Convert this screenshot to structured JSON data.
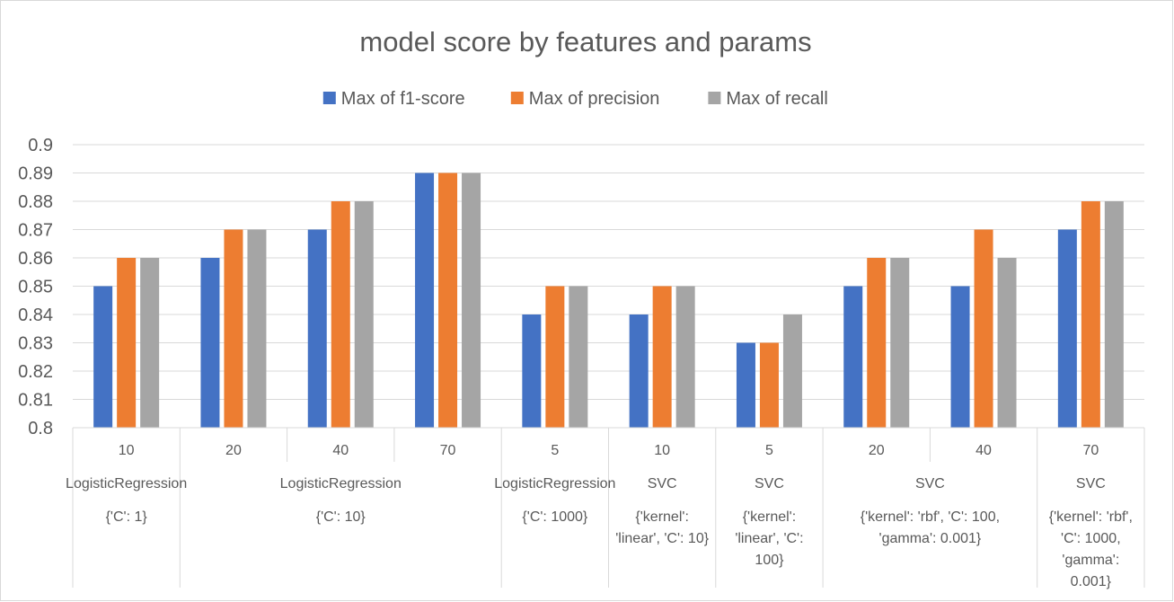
{
  "chart_data": {
    "type": "bar",
    "title": "model score by features and params",
    "ylim": [
      0.8,
      0.9
    ],
    "yticks": [
      "0.8",
      "0.81",
      "0.82",
      "0.83",
      "0.84",
      "0.85",
      "0.86",
      "0.87",
      "0.88",
      "0.89",
      "0.9"
    ],
    "grid": true,
    "legend_position": "top",
    "series": [
      {
        "name": "Max of f1-score",
        "color": "#4472C4",
        "values": [
          0.85,
          0.86,
          0.87,
          0.89,
          0.84,
          0.84,
          0.83,
          0.85,
          0.85,
          0.87
        ]
      },
      {
        "name": "Max of precision",
        "color": "#ED7D31",
        "values": [
          0.86,
          0.87,
          0.88,
          0.89,
          0.85,
          0.85,
          0.83,
          0.86,
          0.87,
          0.88
        ]
      },
      {
        "name": "Max of recall",
        "color": "#A5A5A5",
        "values": [
          0.86,
          0.87,
          0.88,
          0.89,
          0.85,
          0.85,
          0.84,
          0.86,
          0.86,
          0.88
        ]
      }
    ],
    "categories": [
      "10",
      "20",
      "40",
      "70",
      "5",
      "10",
      "5",
      "20",
      "40",
      "70"
    ],
    "model_groups": [
      {
        "label": "LogisticRegression",
        "span": [
          0,
          0
        ]
      },
      {
        "label": "LogisticRegression",
        "span": [
          1,
          3
        ]
      },
      {
        "label": "LogisticRegression",
        "span": [
          4,
          4
        ]
      },
      {
        "label": "SVC",
        "span": [
          5,
          5
        ]
      },
      {
        "label": "SVC",
        "span": [
          6,
          6
        ]
      },
      {
        "label": "SVC",
        "span": [
          7,
          8
        ]
      },
      {
        "label": "SVC",
        "span": [
          9,
          9
        ]
      }
    ],
    "param_groups": [
      {
        "lines": [
          "{'C': 1}"
        ],
        "span": [
          0,
          0
        ]
      },
      {
        "lines": [
          "{'C': 10}"
        ],
        "span": [
          1,
          3
        ]
      },
      {
        "lines": [
          "{'C': 1000}"
        ],
        "span": [
          4,
          4
        ]
      },
      {
        "lines": [
          "{'kernel':",
          "'linear', 'C': 10}"
        ],
        "span": [
          5,
          5
        ]
      },
      {
        "lines": [
          "{'kernel':",
          "'linear', 'C':",
          "100}"
        ],
        "span": [
          6,
          6
        ]
      },
      {
        "lines": [
          "{'kernel': 'rbf', 'C': 100,",
          "'gamma': 0.001}"
        ],
        "span": [
          7,
          8
        ]
      },
      {
        "lines": [
          "{'kernel': 'rbf',",
          "'C': 1000,",
          "'gamma':",
          "0.001}"
        ],
        "span": [
          9,
          9
        ]
      }
    ]
  }
}
